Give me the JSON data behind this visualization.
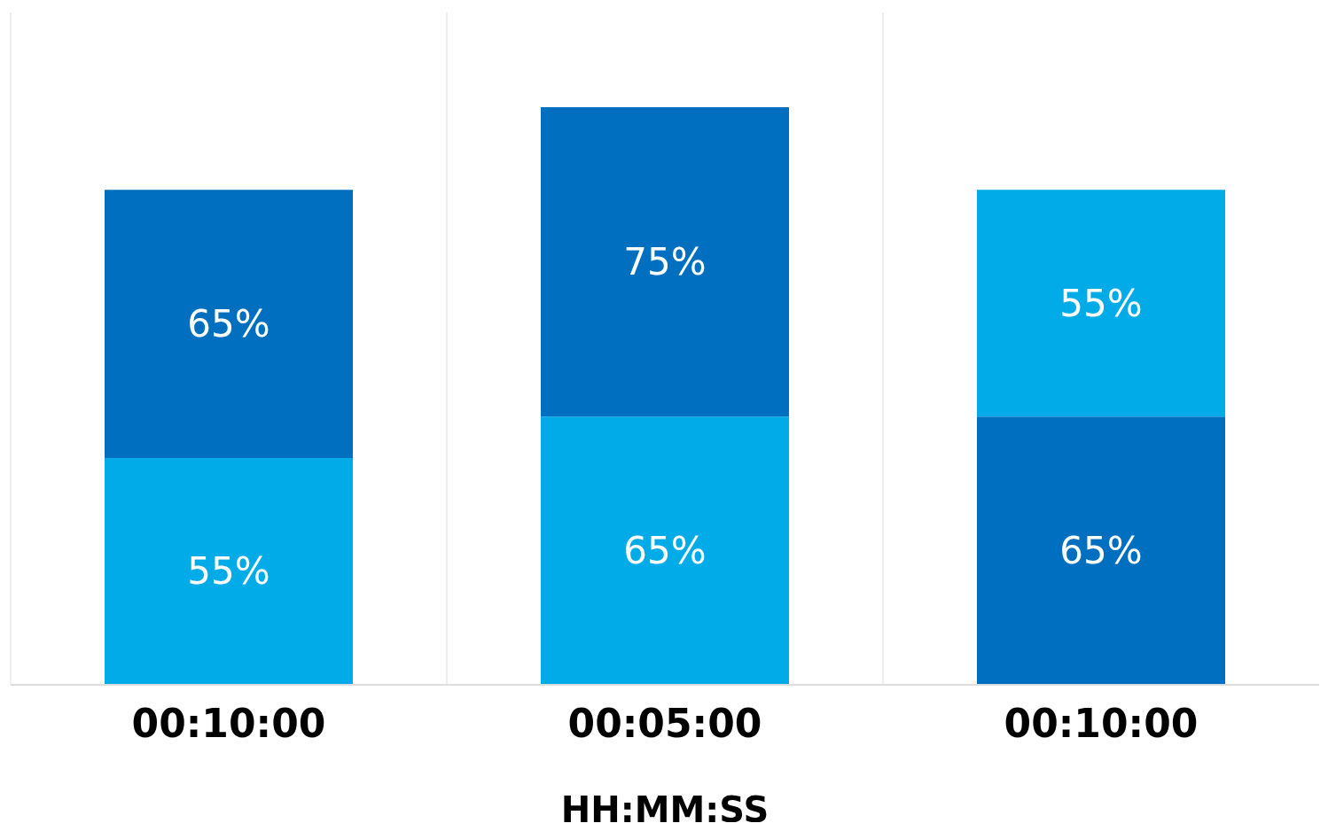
{
  "chart_data": {
    "type": "bar",
    "stacked": true,
    "xlabel": "HH:MM:SS",
    "categories": [
      "00:10:00",
      "00:05:00",
      "00:10:00"
    ],
    "ylim": [
      0,
      163
    ],
    "grid": "x",
    "legend": false,
    "series": [
      {
        "colors": [
          "#00abe8",
          "#00abe8",
          "#006fbf"
        ],
        "values": [
          55,
          65,
          65
        ],
        "value_labels": [
          "55%",
          "65%",
          "65%"
        ]
      },
      {
        "colors": [
          "#006fbf",
          "#006fbf",
          "#00abe8"
        ],
        "values": [
          65,
          75,
          55
        ],
        "value_labels": [
          "65%",
          "75%",
          "55%"
        ]
      }
    ]
  }
}
